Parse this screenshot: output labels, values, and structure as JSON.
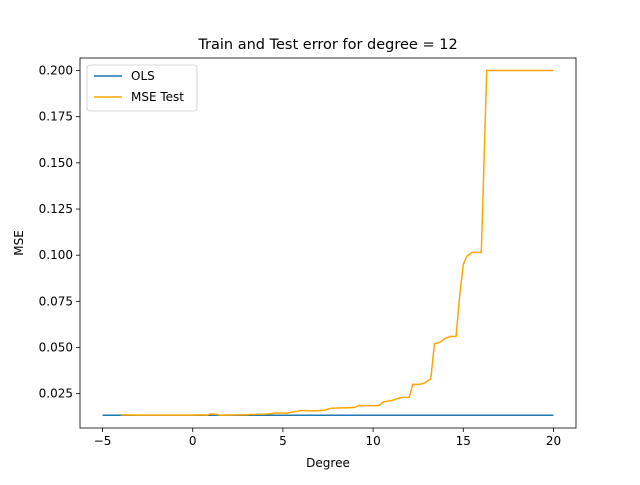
{
  "chart_data": {
    "type": "line",
    "title": "Train and Test error for degree = 12",
    "xlabel": "Degree",
    "ylabel": "MSE",
    "xlim": [
      -6.25,
      21.25
    ],
    "ylim": [
      0.0064,
      0.2068
    ],
    "xticks": [
      -5,
      0,
      5,
      10,
      15,
      20
    ],
    "xtick_labels": [
      "−5",
      "0",
      "5",
      "10",
      "15",
      "20"
    ],
    "yticks": [
      0.025,
      0.05,
      0.075,
      0.1,
      0.125,
      0.15,
      0.175,
      0.2
    ],
    "ytick_labels": [
      "0.025",
      "0.050",
      "0.075",
      "0.100",
      "0.125",
      "0.150",
      "0.175",
      "0.200"
    ],
    "grid": false,
    "legend_position": "upper-left",
    "series": [
      {
        "name": "OLS",
        "color": "#1f77b4",
        "x": [
          -5,
          20
        ],
        "y": [
          0.0133,
          0.0133
        ]
      },
      {
        "name": "MSE Test",
        "color": "#ffa500",
        "x": [
          -4,
          -3,
          -2,
          -1,
          0,
          0.5,
          0.8,
          1.0,
          1.3,
          1.5,
          2.0,
          2.5,
          3.0,
          3.2,
          3.5,
          4.0,
          4.3,
          4.6,
          5.0,
          5.2,
          5.5,
          6.0,
          6.3,
          6.6,
          7.0,
          7.3,
          7.6,
          8.0,
          8.3,
          8.6,
          9.0,
          9.2,
          9.5,
          10.0,
          10.3,
          10.6,
          11.0,
          11.3,
          11.6,
          12.0,
          12.2,
          12.5,
          12.8,
          13.2,
          13.4,
          13.7,
          14.0,
          14.3,
          14.6,
          14.8,
          15.0,
          15.2,
          15.5,
          15.8,
          16.0,
          16.3,
          16.6,
          17.0,
          18.0,
          19.0,
          20.0
        ],
        "y": [
          0.0135,
          0.0134,
          0.0134,
          0.0134,
          0.0134,
          0.0135,
          0.0134,
          0.014,
          0.0138,
          0.0134,
          0.0134,
          0.0135,
          0.0135,
          0.0138,
          0.0138,
          0.0139,
          0.0141,
          0.0145,
          0.0145,
          0.0144,
          0.015,
          0.0158,
          0.0158,
          0.0157,
          0.0158,
          0.016,
          0.017,
          0.0172,
          0.0173,
          0.0174,
          0.0176,
          0.0185,
          0.0186,
          0.0185,
          0.0185,
          0.0206,
          0.0212,
          0.0222,
          0.023,
          0.023,
          0.03,
          0.03,
          0.0305,
          0.033,
          0.052,
          0.0528,
          0.055,
          0.056,
          0.056,
          0.078,
          0.095,
          0.0995,
          0.1015,
          0.1015,
          0.1015,
          0.2,
          0.2,
          0.2,
          0.2,
          0.2,
          0.2
        ]
      }
    ]
  }
}
